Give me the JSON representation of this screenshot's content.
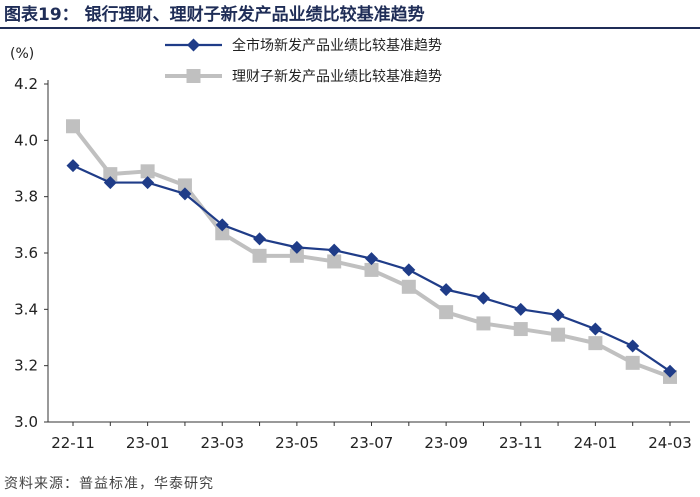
{
  "figure": {
    "title": "图表19： 银行理财、理财子新发产品业绩比较基准趋势",
    "source": "资料来源：普益标准，华泰研究"
  },
  "colors": {
    "title": "#1f2d57",
    "series_market": "#1f3c88",
    "series_wmc": "#c0c0c0",
    "axis": "#333333"
  },
  "chart_data": {
    "type": "line",
    "title": "",
    "xlabel": "",
    "ylabel": "(%)",
    "ylim": [
      3.0,
      4.2
    ],
    "yticks": [
      "3.0",
      "3.2",
      "3.4",
      "3.6",
      "3.8",
      "4.0",
      "4.2"
    ],
    "grid": false,
    "legend_position": "top-right",
    "x": [
      "22-11",
      "22-12",
      "23-01",
      "23-02",
      "23-03",
      "23-04",
      "23-05",
      "23-06",
      "23-07",
      "23-08",
      "23-09",
      "23-10",
      "23-11",
      "23-12",
      "24-01",
      "24-02",
      "24-03"
    ],
    "xtick_labels": [
      "22-11",
      "23-01",
      "23-03",
      "23-05",
      "23-07",
      "23-09",
      "23-11",
      "24-01",
      "24-03"
    ],
    "series": [
      {
        "name": "全市场新发产品业绩比较基准趋势",
        "marker": "diamond",
        "values": [
          3.91,
          3.85,
          3.85,
          3.81,
          3.7,
          3.65,
          3.62,
          3.61,
          3.58,
          3.54,
          3.47,
          3.44,
          3.4,
          3.38,
          3.33,
          3.27,
          3.18
        ]
      },
      {
        "name": "理财子新发产品业绩比较基准趋势",
        "marker": "square",
        "values": [
          4.05,
          3.88,
          3.89,
          3.84,
          3.67,
          3.59,
          3.59,
          3.57,
          3.54,
          3.48,
          3.39,
          3.35,
          3.33,
          3.31,
          3.28,
          3.21,
          3.16
        ]
      }
    ]
  }
}
